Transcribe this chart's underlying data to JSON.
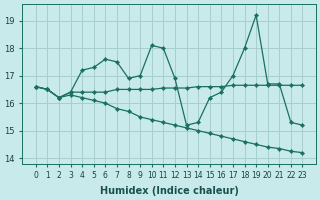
{
  "xlabel": "Humidex (Indice chaleur)",
  "background_color": "#c8eaea",
  "grid_color": "#a8cece",
  "line_color": "#1a7060",
  "x_values": [
    0,
    1,
    2,
    3,
    4,
    5,
    6,
    7,
    8,
    9,
    10,
    11,
    12,
    13,
    14,
    15,
    16,
    17,
    18,
    19,
    20,
    21,
    22,
    23
  ],
  "series_top": [
    16.6,
    16.5,
    16.2,
    16.4,
    17.2,
    17.3,
    17.6,
    17.5,
    16.9,
    17.0,
    18.1,
    18.0,
    16.9,
    15.2,
    15.3,
    16.2,
    16.4,
    17.0,
    18.0,
    19.2,
    16.7,
    16.7,
    15.3,
    15.2
  ],
  "series_mid": [
    16.6,
    16.5,
    16.2,
    16.4,
    16.4,
    16.4,
    16.4,
    16.5,
    16.5,
    16.5,
    16.5,
    16.55,
    16.55,
    16.55,
    16.6,
    16.6,
    16.6,
    16.65,
    16.65,
    16.65,
    16.65,
    16.65,
    16.65,
    16.65
  ],
  "series_bot": [
    16.6,
    16.5,
    16.2,
    16.3,
    16.2,
    16.1,
    16.0,
    15.8,
    15.7,
    15.5,
    15.4,
    15.3,
    15.2,
    15.1,
    15.0,
    14.9,
    14.8,
    14.7,
    14.6,
    14.5,
    14.4,
    14.35,
    14.25,
    14.2
  ],
  "ylim": [
    13.8,
    19.6
  ],
  "yticks": [
    14,
    15,
    16,
    17,
    18,
    19
  ],
  "xticks": [
    0,
    1,
    2,
    3,
    4,
    5,
    6,
    7,
    8,
    9,
    10,
    11,
    12,
    13,
    14,
    15,
    16,
    17,
    18,
    19,
    20,
    21,
    22,
    23
  ],
  "tick_fontsize": 5.5,
  "xlabel_fontsize": 7
}
